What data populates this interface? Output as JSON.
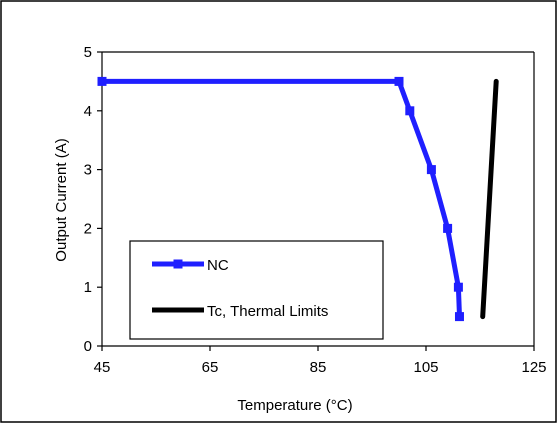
{
  "chart_data": {
    "type": "line",
    "xlabel": "Temperature (°C)",
    "ylabel": "Output Current (A)",
    "xlim": [
      45,
      125
    ],
    "ylim": [
      0,
      5
    ],
    "x_ticks": [
      "45",
      "65",
      "85",
      "105",
      "125"
    ],
    "y_ticks": [
      "0",
      "1",
      "2",
      "3",
      "4",
      "5"
    ],
    "grid": false,
    "legend_position": "bottom-left inside plot",
    "series": [
      {
        "name": "NC",
        "color": "#1f1fff",
        "marker": "square",
        "points": [
          {
            "x": 45,
            "y": 4.5
          },
          {
            "x": 100,
            "y": 4.5
          },
          {
            "x": 102,
            "y": 4.0
          },
          {
            "x": 106,
            "y": 3.0
          },
          {
            "x": 109,
            "y": 2.0
          },
          {
            "x": 111,
            "y": 1.0
          },
          {
            "x": 111.2,
            "y": 0.5
          }
        ]
      },
      {
        "name": "Tc, Thermal Limits",
        "color": "#000000",
        "marker": "none",
        "points": [
          {
            "x": 115.5,
            "y": 0.5
          },
          {
            "x": 118,
            "y": 4.5
          }
        ]
      }
    ]
  }
}
